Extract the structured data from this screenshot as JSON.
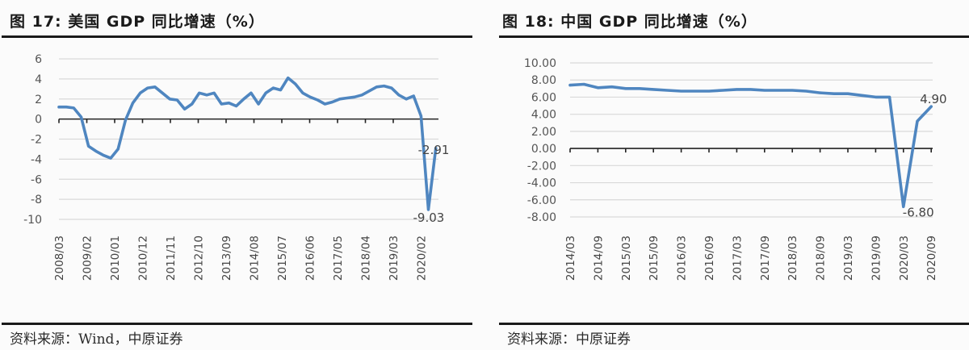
{
  "left": {
    "title": "图 17:  美国 GDP 同比增速（%）",
    "source": "资料来源：Wind，中原证券"
  },
  "right": {
    "title": "图 18:  中国 GDP 同比增速（%）",
    "source": "资料来源：中原证券"
  },
  "colors": {
    "line": "#4f86c0",
    "grid": "#d9d9d9",
    "axis": "#222222",
    "rule": "#1a1a1a"
  },
  "chart_data": [
    {
      "type": "line",
      "title": "美国 GDP 同比增速（%）",
      "xlabel": "",
      "ylabel": "%",
      "ylim": [
        -10,
        6
      ],
      "yticks": [
        6,
        4,
        2,
        0,
        -2,
        -4,
        -6,
        -8,
        -10
      ],
      "ytick_labels": [
        "6",
        "4",
        "2",
        "0",
        "-2",
        "-4",
        "-6",
        "-8",
        "-10"
      ],
      "grid": true,
      "legend": null,
      "x_tick_labels": [
        "2008/03",
        "2009/02",
        "2010/01",
        "2010/12",
        "2011/11",
        "2012/10",
        "2013/09",
        "2014/08",
        "2015/07",
        "2016/06",
        "2017/05",
        "2018/04",
        "2019/03",
        "2020/02"
      ],
      "annotations": [
        {
          "text": "-2.91",
          "point": "last"
        },
        {
          "text": "-9.03",
          "point": "min"
        }
      ],
      "series": [
        {
          "name": "美国 GDP 同比",
          "frequency": "quarterly",
          "start": "2008Q1",
          "values": [
            1.2,
            1.2,
            1.1,
            0.2,
            -2.7,
            -3.2,
            -3.6,
            -3.9,
            -3.0,
            -0.1,
            1.6,
            2.6,
            3.1,
            3.2,
            2.6,
            2.0,
            1.9,
            1.0,
            1.5,
            2.6,
            2.4,
            2.6,
            1.5,
            1.6,
            1.3,
            2.0,
            2.6,
            1.5,
            2.6,
            3.1,
            2.9,
            4.1,
            3.5,
            2.6,
            2.2,
            1.9,
            1.5,
            1.7,
            2.0,
            2.1,
            2.2,
            2.4,
            2.8,
            3.2,
            3.3,
            3.1,
            2.4,
            2.0,
            2.3,
            0.3,
            -9.03,
            -2.91
          ]
        }
      ]
    },
    {
      "type": "line",
      "title": "中国 GDP 同比增速（%）",
      "xlabel": "",
      "ylabel": "%",
      "ylim": [
        -8,
        10
      ],
      "yticks": [
        10,
        8,
        6,
        4,
        2,
        0,
        -2,
        -4,
        -6,
        -8
      ],
      "ytick_labels": [
        "10.00",
        "8.00",
        "6.00",
        "4.00",
        "2.00",
        "0.00",
        "-2.00",
        "-4.00",
        "-6.00",
        "-8.00"
      ],
      "grid": true,
      "legend": null,
      "x_tick_labels": [
        "2014/03",
        "2014/09",
        "2015/03",
        "2015/09",
        "2016/03",
        "2016/09",
        "2017/03",
        "2017/09",
        "2018/03",
        "2018/09",
        "2019/03",
        "2019/09",
        "2020/03",
        "2020/09"
      ],
      "annotations": [
        {
          "text": "4.90",
          "point": "last"
        },
        {
          "text": "-6.80",
          "point": "min"
        }
      ],
      "series": [
        {
          "name": "中国 GDP 同比",
          "frequency": "quarterly",
          "start": "2014Q1",
          "values": [
            7.4,
            7.5,
            7.1,
            7.2,
            7.0,
            7.0,
            6.9,
            6.8,
            6.7,
            6.7,
            6.7,
            6.8,
            6.9,
            6.9,
            6.8,
            6.8,
            6.8,
            6.7,
            6.5,
            6.4,
            6.4,
            6.2,
            6.0,
            6.0,
            -6.8,
            3.2,
            4.9
          ]
        }
      ]
    }
  ]
}
